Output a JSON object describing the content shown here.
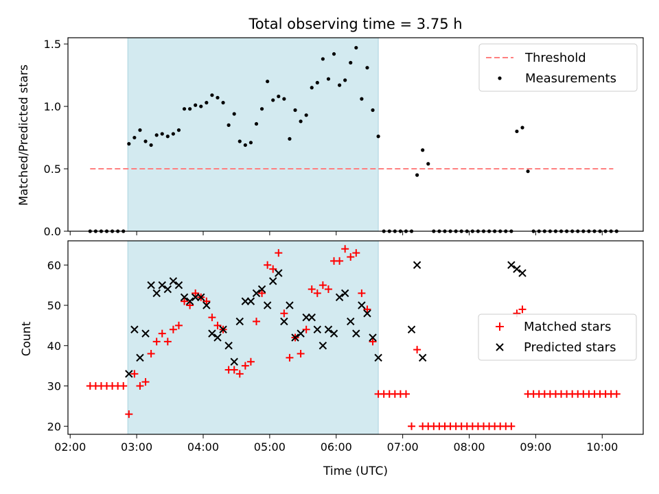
{
  "title": "Total observing time = 3.75 h",
  "colors": {
    "threshold": "#ff7f7f",
    "matched": "#ff0000",
    "predicted": "#000000",
    "shade": "#d3eaf0"
  },
  "chart_data": [
    {
      "type": "scatter",
      "ylabel": "Matched/Predicted stars",
      "xlabel": "",
      "xlim": [
        "01:58",
        "10:37"
      ],
      "ylim": [
        0,
        1.55
      ],
      "yticks": [
        0.0,
        0.5,
        1.0,
        1.5
      ],
      "ytick_labels": [
        "0.0",
        "0.5",
        "1.0",
        "1.5"
      ],
      "shaded_span": [
        "02:52",
        "06:38"
      ],
      "legend_position": "upper-right",
      "legend": [
        "Threshold",
        "Measurements"
      ],
      "threshold": {
        "name": "Threshold",
        "y": 0.5,
        "x_start": "02:18",
        "x_end": "10:10"
      },
      "series": [
        {
          "name": "Measurements",
          "marker": "dot",
          "x": [
            "02:18",
            "02:23",
            "02:28",
            "02:33",
            "02:38",
            "02:43",
            "02:48",
            "02:53",
            "02:58",
            "03:03",
            "03:08",
            "03:13",
            "03:18",
            "03:23",
            "03:28",
            "03:33",
            "03:38",
            "03:43",
            "03:48",
            "03:53",
            "03:58",
            "04:03",
            "04:08",
            "04:13",
            "04:18",
            "04:23",
            "04:28",
            "04:33",
            "04:38",
            "04:43",
            "04:48",
            "04:53",
            "04:58",
            "05:03",
            "05:08",
            "05:13",
            "05:18",
            "05:23",
            "05:28",
            "05:33",
            "05:38",
            "05:43",
            "05:48",
            "05:53",
            "05:58",
            "06:03",
            "06:08",
            "06:13",
            "06:18",
            "06:23",
            "06:28",
            "06:33",
            "06:38",
            "06:43",
            "06:48",
            "06:53",
            "06:58",
            "07:03",
            "07:08",
            "07:13",
            "07:18",
            "07:23",
            "07:28",
            "07:33",
            "07:38",
            "07:43",
            "07:48",
            "07:53",
            "07:58",
            "08:03",
            "08:08",
            "08:13",
            "08:18",
            "08:23",
            "08:28",
            "08:33",
            "08:38",
            "08:43",
            "08:48",
            "08:53",
            "08:58",
            "09:03",
            "09:08",
            "09:13",
            "09:18",
            "09:23",
            "09:28",
            "09:33",
            "09:38",
            "09:43",
            "09:48",
            "09:53",
            "09:58",
            "10:03",
            "10:08",
            "10:13"
          ],
          "y": [
            0,
            0,
            0,
            0,
            0,
            0,
            0,
            0.7,
            0.75,
            0.81,
            0.72,
            0.69,
            0.77,
            0.78,
            0.76,
            0.78,
            0.81,
            0.98,
            0.98,
            1.01,
            1.0,
            1.03,
            1.09,
            1.07,
            1.03,
            0.85,
            0.94,
            0.72,
            0.69,
            0.71,
            0.86,
            0.98,
            1.2,
            1.05,
            1.08,
            1.06,
            0.74,
            0.97,
            0.88,
            0.93,
            1.15,
            1.19,
            1.38,
            1.22,
            1.42,
            1.17,
            1.21,
            1.35,
            1.47,
            1.06,
            1.31,
            0.97,
            0.76,
            0,
            0,
            0,
            0,
            0,
            0,
            0.45,
            0.65,
            0.54,
            0,
            0,
            0,
            0,
            0,
            0,
            0,
            0,
            0,
            0,
            0,
            0,
            0,
            0,
            0,
            0.8,
            0.83,
            0.48,
            0,
            0,
            0,
            0,
            0,
            0,
            0,
            0,
            0,
            0,
            0,
            0,
            0,
            0,
            0,
            0
          ]
        }
      ]
    },
    {
      "type": "scatter",
      "ylabel": "Count",
      "xlabel": "Time (UTC)",
      "xlim": [
        "01:58",
        "10:37"
      ],
      "ylim": [
        18,
        66
      ],
      "yticks": [
        20,
        30,
        40,
        50,
        60
      ],
      "ytick_labels": [
        "20",
        "30",
        "40",
        "50",
        "60"
      ],
      "xticks": [
        "02:00",
        "03:00",
        "04:00",
        "05:00",
        "06:00",
        "07:00",
        "08:00",
        "09:00",
        "10:00"
      ],
      "shaded_span": [
        "02:52",
        "06:38"
      ],
      "legend_position": "center-right",
      "legend": [
        "Matched stars",
        "Predicted stars"
      ],
      "series": [
        {
          "name": "Matched stars",
          "marker": "plus",
          "x": [
            "02:18",
            "02:23",
            "02:28",
            "02:33",
            "02:38",
            "02:43",
            "02:48",
            "02:53",
            "02:58",
            "03:03",
            "03:08",
            "03:13",
            "03:18",
            "03:23",
            "03:28",
            "03:33",
            "03:38",
            "03:43",
            "03:48",
            "03:53",
            "03:58",
            "04:03",
            "04:08",
            "04:13",
            "04:18",
            "04:23",
            "04:28",
            "04:33",
            "04:38",
            "04:43",
            "04:48",
            "04:53",
            "04:58",
            "05:03",
            "05:08",
            "05:13",
            "05:18",
            "05:23",
            "05:28",
            "05:33",
            "05:38",
            "05:43",
            "05:48",
            "05:53",
            "05:58",
            "06:03",
            "06:08",
            "06:13",
            "06:18",
            "06:23",
            "06:28",
            "06:33",
            "06:38",
            "06:43",
            "06:48",
            "06:53",
            "06:58",
            "07:03",
            "07:08",
            "07:13",
            "07:18",
            "07:23",
            "07:28",
            "07:33",
            "07:38",
            "07:43",
            "07:48",
            "07:53",
            "07:58",
            "08:03",
            "08:08",
            "08:13",
            "08:18",
            "08:23",
            "08:28",
            "08:33",
            "08:38",
            "08:43",
            "08:48",
            "08:53",
            "08:58",
            "09:03",
            "09:08",
            "09:13",
            "09:18",
            "09:23",
            "09:28",
            "09:33",
            "09:38",
            "09:43",
            "09:48",
            "09:53",
            "09:58",
            "10:03",
            "10:08",
            "10:13"
          ],
          "y": [
            30,
            30,
            30,
            30,
            30,
            30,
            30,
            23,
            33,
            30,
            31,
            38,
            41,
            43,
            41,
            44,
            45,
            51,
            50,
            53,
            52,
            51,
            47,
            45,
            44,
            34,
            34,
            33,
            35,
            36,
            46,
            53,
            60,
            59,
            63,
            48,
            37,
            42,
            38,
            44,
            54,
            53,
            55,
            54,
            61,
            61,
            64,
            62,
            63,
            53,
            49,
            41,
            28,
            28,
            28,
            28,
            28,
            28,
            20,
            39,
            20,
            20,
            20,
            20,
            20,
            20,
            20,
            20,
            20,
            20,
            20,
            20,
            20,
            20,
            20,
            20,
            20,
            48,
            49,
            28,
            28,
            28,
            28,
            28,
            28,
            28,
            28,
            28,
            28,
            28,
            28,
            28,
            28,
            28,
            28,
            28
          ]
        },
        {
          "name": "Predicted stars",
          "marker": "x",
          "x": [
            "02:53",
            "02:58",
            "03:03",
            "03:08",
            "03:13",
            "03:18",
            "03:23",
            "03:28",
            "03:33",
            "03:38",
            "03:43",
            "03:48",
            "03:53",
            "03:58",
            "04:03",
            "04:08",
            "04:13",
            "04:18",
            "04:23",
            "04:28",
            "04:33",
            "04:38",
            "04:43",
            "04:48",
            "04:53",
            "04:58",
            "05:03",
            "05:08",
            "05:13",
            "05:18",
            "05:23",
            "05:28",
            "05:33",
            "05:38",
            "05:43",
            "05:48",
            "05:53",
            "05:58",
            "06:03",
            "06:08",
            "06:13",
            "06:18",
            "06:23",
            "06:28",
            "06:33",
            "06:38",
            "07:08",
            "07:13",
            "07:18",
            "08:38",
            "08:43",
            "08:48"
          ],
          "y": [
            33,
            44,
            37,
            43,
            55,
            53,
            55,
            54,
            56,
            55,
            52,
            51,
            52,
            52,
            50,
            43,
            42,
            44,
            40,
            36,
            46,
            51,
            51,
            53,
            54,
            50,
            56,
            58,
            46,
            50,
            42,
            43,
            47,
            47,
            44,
            40,
            44,
            43,
            52,
            53,
            46,
            43,
            50,
            48,
            42,
            37,
            44,
            60,
            37,
            60,
            59,
            58
          ]
        }
      ]
    }
  ]
}
